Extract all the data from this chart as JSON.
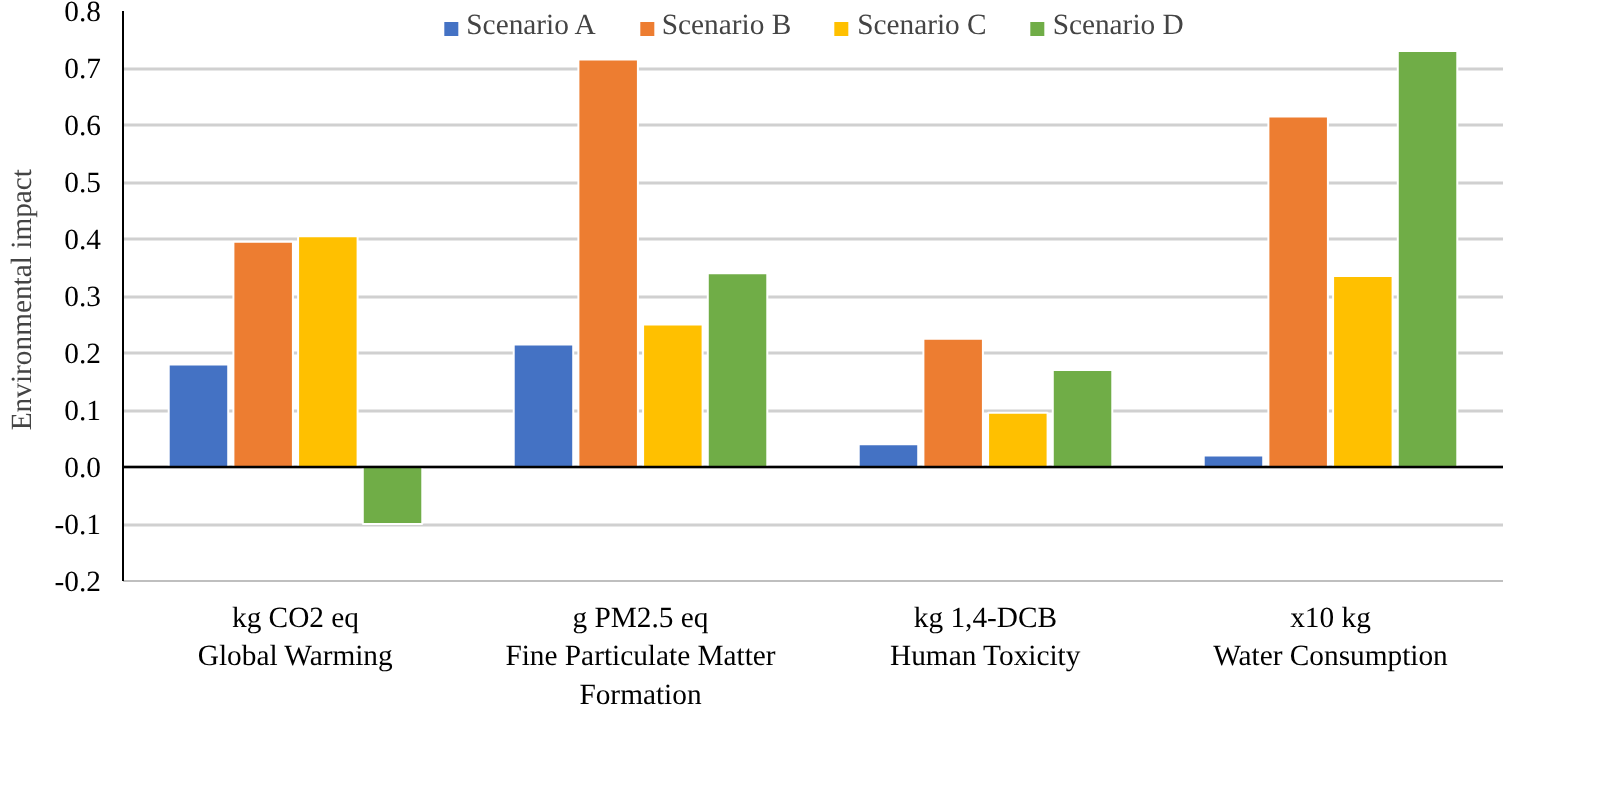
{
  "chart_data": {
    "type": "bar",
    "ylabel": "Environmental  impact",
    "categories": [
      "kg CO2 eq\nGlobal Warming",
      "g PM2.5 eq\nFine Particulate Matter\nFormation",
      "kg 1,4-DCB\nHuman Toxicity",
      "x10 kg\nWater Consumption"
    ],
    "series": [
      {
        "name": "Scenario A",
        "color": "#4472c4",
        "values": [
          0.18,
          0.215,
          0.04,
          0.02
        ]
      },
      {
        "name": "Scenario B",
        "color": "#ed7d31",
        "values": [
          0.395,
          0.715,
          0.225,
          0.615
        ]
      },
      {
        "name": "Scenario C",
        "color": "#ffc000",
        "values": [
          0.405,
          0.25,
          0.095,
          0.335
        ]
      },
      {
        "name": "Scenario D",
        "color": "#70ad47",
        "values": [
          -0.1,
          0.34,
          0.17,
          0.73
        ]
      }
    ],
    "ylim": [
      -0.2,
      0.8
    ],
    "yticks": [
      -0.2,
      -0.1,
      {
        "value": 0,
        "label": "0.0"
      },
      0.1,
      0.2,
      0.3,
      0.4,
      0.5,
      0.6,
      0.7,
      0.8
    ],
    "grid": "y",
    "legend": "top"
  }
}
